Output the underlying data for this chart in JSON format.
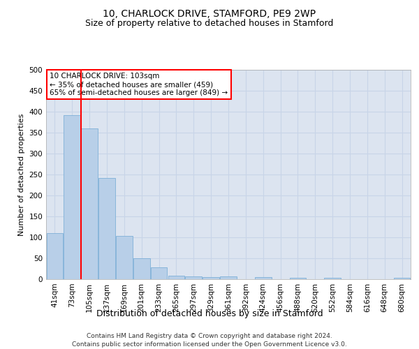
{
  "title": "10, CHARLOCK DRIVE, STAMFORD, PE9 2WP",
  "subtitle": "Size of property relative to detached houses in Stamford",
  "xlabel": "Distribution of detached houses by size in Stamford",
  "ylabel": "Number of detached properties",
  "footer_line1": "Contains HM Land Registry data © Crown copyright and database right 2024.",
  "footer_line2": "Contains public sector information licensed under the Open Government Licence v3.0.",
  "categories": [
    "41sqm",
    "73sqm",
    "105sqm",
    "137sqm",
    "169sqm",
    "201sqm",
    "233sqm",
    "265sqm",
    "297sqm",
    "329sqm",
    "361sqm",
    "392sqm",
    "424sqm",
    "456sqm",
    "488sqm",
    "520sqm",
    "552sqm",
    "584sqm",
    "616sqm",
    "648sqm",
    "680sqm"
  ],
  "bar_values": [
    110,
    392,
    360,
    242,
    103,
    50,
    29,
    9,
    7,
    5,
    7,
    0,
    5,
    0,
    3,
    0,
    4,
    0,
    0,
    0,
    4
  ],
  "bar_color": "#b8cfe8",
  "bar_edge_color": "#6fa8d4",
  "grid_color": "#c8d4e8",
  "background_color": "#dce4f0",
  "red_line_x": 1.5,
  "annotation_line1": "10 CHARLOCK DRIVE: 103sqm",
  "annotation_line2": "← 35% of detached houses are smaller (459)",
  "annotation_line3": "65% of semi-detached houses are larger (849) →",
  "ylim": [
    0,
    500
  ],
  "yticks": [
    0,
    50,
    100,
    150,
    200,
    250,
    300,
    350,
    400,
    450,
    500
  ],
  "title_fontsize": 10,
  "subtitle_fontsize": 9,
  "xlabel_fontsize": 9,
  "ylabel_fontsize": 8,
  "tick_fontsize": 7.5,
  "footer_fontsize": 6.5
}
